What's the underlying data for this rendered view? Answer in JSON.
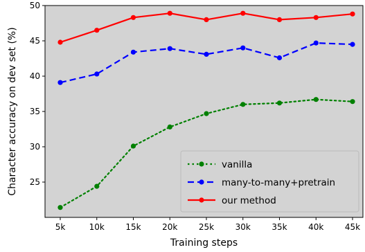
{
  "chart_data": {
    "type": "line",
    "title": "",
    "xlabel": "Training steps",
    "ylabel": "Character accuracy on dev set (%)",
    "categories": [
      "5k",
      "10k",
      "15k",
      "20k",
      "25k",
      "30k",
      "35k",
      "40k",
      "45k"
    ],
    "ylim": [
      20,
      50
    ],
    "yticks": [
      25,
      30,
      35,
      40,
      45,
      50
    ],
    "grid": false,
    "plot_background": "#d3d3d3",
    "legend_position": "lower-right",
    "series": [
      {
        "name": "vanilla",
        "color": "#008000",
        "linestyle": "dotted",
        "marker": "circle",
        "values": [
          21.4,
          24.4,
          30.1,
          32.8,
          34.7,
          36.0,
          36.2,
          36.7,
          36.4
        ]
      },
      {
        "name": "many-to-many+pretrain",
        "color": "#0000ff",
        "linestyle": "dashed",
        "marker": "circle",
        "values": [
          39.1,
          40.3,
          43.4,
          43.9,
          43.1,
          44.0,
          42.6,
          44.7,
          44.5
        ]
      },
      {
        "name": "our method",
        "color": "#ff0000",
        "linestyle": "solid",
        "marker": "circle",
        "values": [
          44.8,
          46.5,
          48.3,
          48.9,
          48.0,
          48.9,
          48.0,
          48.3,
          48.8
        ]
      }
    ]
  }
}
